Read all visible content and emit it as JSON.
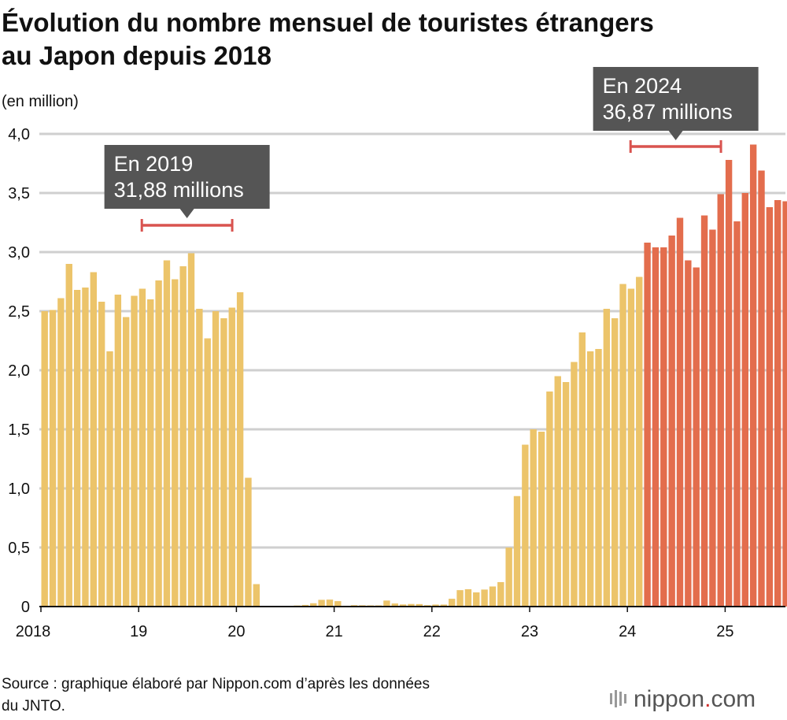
{
  "chart_data": {
    "type": "bar",
    "title": [
      "Évolution du nombre mensuel de touristes étrangers",
      "au Japon depuis 2018"
    ],
    "y_axis_label": "(en million)",
    "categories": [
      "2018",
      null,
      null,
      null,
      null,
      null,
      null,
      null,
      null,
      null,
      null,
      null,
      "19",
      null,
      null,
      null,
      null,
      null,
      null,
      null,
      null,
      null,
      null,
      null,
      "20",
      null,
      null,
      null,
      null,
      null,
      null,
      null,
      null,
      null,
      null,
      null,
      "21",
      null,
      null,
      null,
      null,
      null,
      null,
      null,
      null,
      null,
      null,
      null,
      "22",
      null,
      null,
      null,
      null,
      null,
      null,
      null,
      null,
      null,
      null,
      null,
      "23",
      null,
      null,
      null,
      null,
      null,
      null,
      null,
      null,
      null,
      null,
      null,
      "24",
      null,
      null,
      null,
      null,
      null,
      null,
      null,
      null,
      null,
      null,
      null,
      "25",
      null,
      null,
      null,
      null,
      null,
      null,
      null
    ],
    "series": [
      {
        "color": "#ecc46a",
        "values": [
          2.5,
          2.51,
          2.61,
          2.9,
          2.68,
          2.7,
          2.83,
          2.58,
          2.16,
          2.64,
          2.45,
          2.63,
          2.69,
          2.6,
          2.76,
          2.93,
          2.77,
          2.88,
          2.99,
          2.52,
          2.27,
          2.5,
          2.44,
          2.53,
          2.66,
          1.09,
          0.19,
          0.003,
          0.002,
          0.003,
          0.004,
          0.009,
          0.014,
          0.028,
          0.057,
          0.059,
          0.046,
          0.007,
          0.012,
          0.011,
          0.01,
          0.01,
          0.051,
          0.026,
          0.018,
          0.022,
          0.021,
          0.012,
          0.017,
          0.017,
          0.066,
          0.139,
          0.147,
          0.12,
          0.144,
          0.17,
          0.207,
          0.499,
          0.935,
          1.37,
          1.5,
          1.48,
          1.82,
          1.95,
          1.9,
          2.07,
          2.32,
          2.16,
          2.18,
          2.52,
          2.44,
          2.73,
          2.69,
          2.79,
          null,
          null,
          null,
          null,
          null,
          null,
          null,
          null,
          null,
          null,
          null,
          null,
          null,
          null,
          null,
          null,
          null,
          null
        ]
      },
      {
        "color": "#e36d4d",
        "values": [
          null,
          null,
          null,
          null,
          null,
          null,
          null,
          null,
          null,
          null,
          null,
          null,
          null,
          null,
          null,
          null,
          null,
          null,
          null,
          null,
          null,
          null,
          null,
          null,
          null,
          null,
          null,
          null,
          null,
          null,
          null,
          null,
          null,
          null,
          null,
          null,
          null,
          null,
          null,
          null,
          null,
          null,
          null,
          null,
          null,
          null,
          null,
          null,
          null,
          null,
          null,
          null,
          null,
          null,
          null,
          null,
          null,
          null,
          null,
          null,
          null,
          null,
          null,
          null,
          null,
          null,
          null,
          null,
          null,
          null,
          null,
          null,
          null,
          null,
          3.08,
          3.04,
          3.04,
          3.14,
          3.29,
          2.93,
          2.87,
          3.31,
          3.19,
          3.49,
          3.78,
          3.26,
          3.5,
          3.91,
          3.69,
          3.38,
          3.44,
          3.43
        ]
      }
    ],
    "ylim": [
      0,
      4
    ],
    "yticks": [
      0,
      {
        "value": 0.5,
        "label": "0,5"
      },
      {
        "value": 1,
        "label": "1,0"
      },
      {
        "value": 1.5,
        "label": "1,5"
      },
      {
        "value": 2,
        "label": "2,0"
      },
      {
        "value": 2.5,
        "label": "2,5"
      },
      {
        "value": 3,
        "label": "3,0"
      },
      {
        "value": 3.5,
        "label": "3,5"
      },
      {
        "value": 4,
        "label": "4,0"
      }
    ],
    "grid": true,
    "annotations": [
      {
        "lines": [
          "En 2019",
          "31,88 millions"
        ]
      },
      {
        "lines": [
          "En 2024",
          "36,87 millions"
        ]
      }
    ],
    "source": [
      "Source : graphique élaboré par Nippon.com d’après les données",
      "du JNTO."
    ],
    "logo": [
      "nippon",
      ".",
      "com"
    ]
  }
}
